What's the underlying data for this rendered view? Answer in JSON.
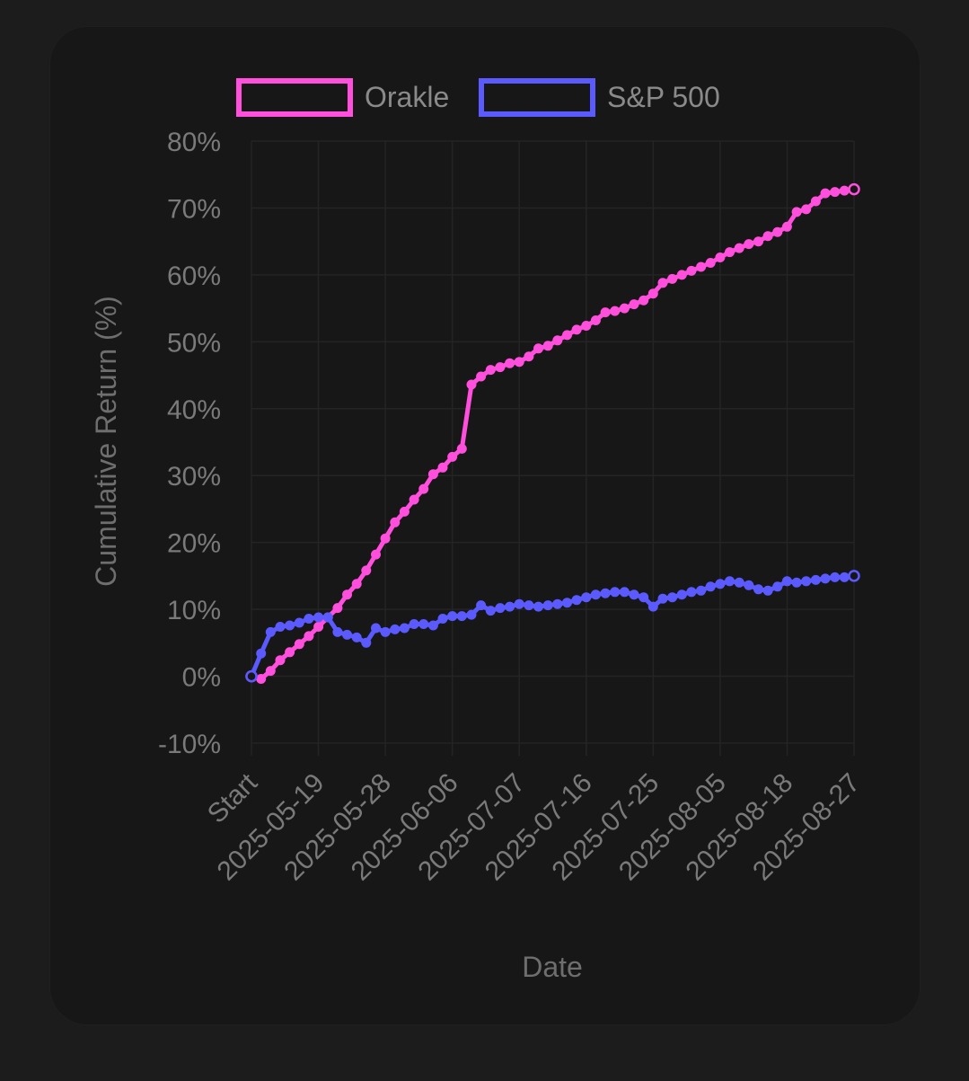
{
  "chart_data": {
    "type": "line",
    "xlabel": "Date",
    "ylabel": "Cumulative Return (%)",
    "ylim": [
      -10,
      80
    ],
    "yticks": [
      "80%",
      "70%",
      "60%",
      "50%",
      "40%",
      "30%",
      "20%",
      "10%",
      "0%",
      "-10%"
    ],
    "ytick_values": [
      80,
      70,
      60,
      50,
      40,
      30,
      20,
      10,
      0,
      -10
    ],
    "x_tick_labels": [
      "Start",
      "2025-05-19",
      "2025-05-28",
      "2025-06-06",
      "2025-07-07",
      "2025-07-16",
      "2025-07-25",
      "2025-08-05",
      "2025-08-18",
      "2025-08-27"
    ],
    "x_tick_indices": [
      0,
      7,
      14,
      21,
      28,
      35,
      42,
      49,
      56,
      63
    ],
    "grid": true,
    "legend_position": "top-center",
    "series": [
      {
        "name": "Orakle",
        "color": "#ff4fdc",
        "values": [
          0,
          -0.4,
          0.8,
          2.4,
          3.6,
          4.8,
          6.0,
          7.4,
          8.8,
          10.2,
          12.2,
          13.8,
          15.8,
          18.2,
          20.6,
          23.0,
          24.6,
          26.4,
          28.0,
          30.2,
          31.2,
          32.8,
          34.0,
          43.6,
          44.8,
          45.8,
          46.2,
          46.8,
          47.0,
          47.8,
          49.0,
          49.4,
          50.2,
          51.0,
          51.8,
          52.4,
          53.2,
          54.4,
          54.6,
          55.0,
          55.6,
          56.2,
          57.2,
          58.8,
          59.4,
          60.0,
          60.6,
          61.2,
          61.8,
          62.6,
          63.4,
          64.0,
          64.6,
          65.0,
          65.8,
          66.4,
          67.2,
          69.4,
          69.8,
          71.0,
          72.2,
          72.4,
          72.6,
          72.8
        ]
      },
      {
        "name": "S&P 500",
        "color": "#5a5aff",
        "values": [
          0,
          3.4,
          6.6,
          7.4,
          7.6,
          8.0,
          8.6,
          8.8,
          8.8,
          6.6,
          6.2,
          5.8,
          5.0,
          7.2,
          6.6,
          7.0,
          7.2,
          7.8,
          7.8,
          7.6,
          8.6,
          9.0,
          9.0,
          9.2,
          10.6,
          9.8,
          10.2,
          10.4,
          10.8,
          10.6,
          10.4,
          10.6,
          10.8,
          11.0,
          11.4,
          11.8,
          12.2,
          12.4,
          12.6,
          12.6,
          12.2,
          11.8,
          10.4,
          11.6,
          11.8,
          12.2,
          12.6,
          12.8,
          13.4,
          13.8,
          14.2,
          14.0,
          13.6,
          13.0,
          12.8,
          13.4,
          14.2,
          14.0,
          14.2,
          14.4,
          14.6,
          14.8,
          14.8,
          15.0
        ]
      }
    ]
  }
}
